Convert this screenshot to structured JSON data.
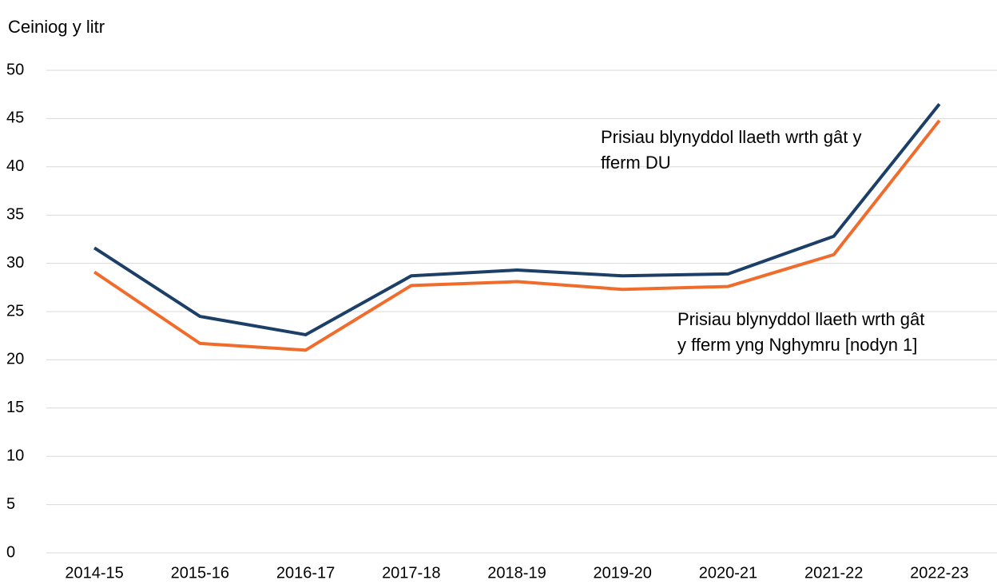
{
  "chart_data": {
    "type": "line",
    "y_label": "Ceiniog y litr",
    "categories": [
      "2014-15",
      "2015-16",
      "2016-17",
      "2017-18",
      "2018-19",
      "2019-20",
      "2020-21",
      "2021-22",
      "2022-23"
    ],
    "series": [
      {
        "name": "Prisiau blynyddol llaeth wrth gât y fferm DU",
        "color": "#1b3f66",
        "values": [
          31.6,
          24.5,
          22.6,
          28.7,
          29.3,
          28.7,
          28.9,
          32.8,
          46.5
        ]
      },
      {
        "name": "Prisiau blynyddol llaeth wrth gât y fferm yng Nghymru [nodyn 1]",
        "color": "#f06c2c",
        "values": [
          29.1,
          21.7,
          21.0,
          27.7,
          28.1,
          27.3,
          27.6,
          30.9,
          44.8
        ]
      }
    ],
    "ylim": [
      0,
      50
    ],
    "yticks": [
      0,
      5,
      10,
      15,
      20,
      25,
      30,
      35,
      40,
      45,
      50
    ],
    "grid": true
  }
}
